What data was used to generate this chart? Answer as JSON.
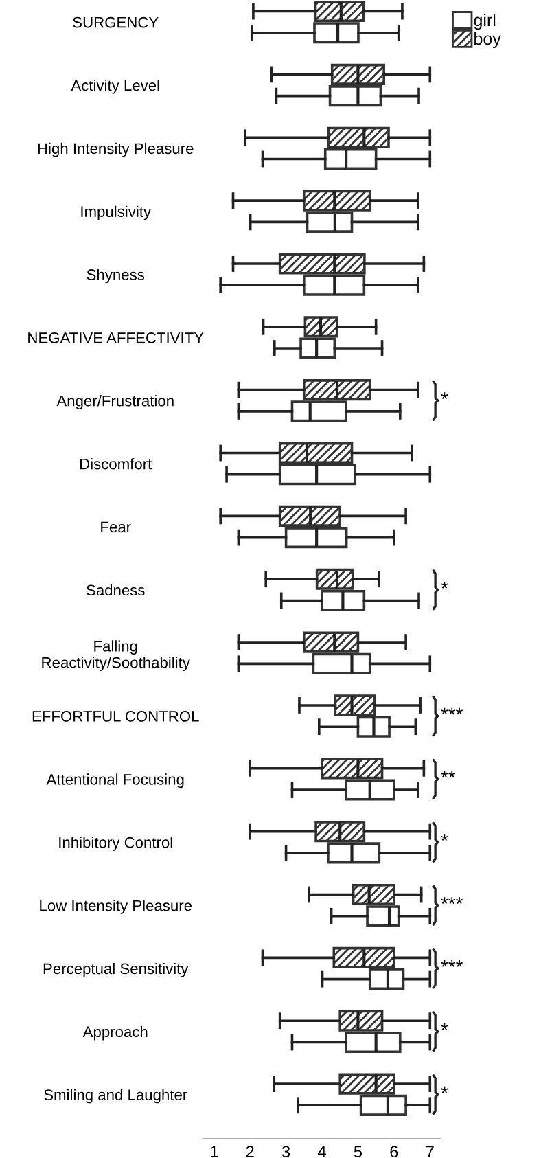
{
  "chart_data": {
    "type": "box",
    "orientation": "horizontal",
    "legend": "top right",
    "grid": false,
    "categories": [
      "SURGENCY",
      "Activity Level",
      "High Intensity Pleasure",
      "Impulsivity",
      "Shyness",
      "NEGATIVE AFFECTIVITY",
      "Anger/Frustration",
      "Discomfort",
      "Fear",
      "Sadness",
      "Falling\nReactivity/Soothability",
      "EFFORTFUL CONTROL",
      "Attentional Focusing",
      "Inhibitory Control",
      "Low Intensity Pleasure",
      "Perceptual Sensitivity",
      "Approach",
      "Smiling and Laughter"
    ],
    "xlim": [
      0.7,
      7.3
    ],
    "xticks": [
      1,
      2,
      3,
      4,
      5,
      6,
      7
    ],
    "series": [
      {
        "name": "boy",
        "color": "#333333",
        "boxes": [
          {
            "low": 2.09,
            "q1": 3.82,
            "median": 4.53,
            "q3": 5.15,
            "high": 6.23
          },
          {
            "low": 2.6,
            "q1": 4.28,
            "median": 5.0,
            "q3": 5.72,
            "high": 7.0
          },
          {
            "low": 1.86,
            "q1": 4.18,
            "median": 5.17,
            "q3": 5.85,
            "high": 7.0
          },
          {
            "low": 1.53,
            "q1": 3.5,
            "median": 4.35,
            "q3": 5.33,
            "high": 6.67
          },
          {
            "low": 1.53,
            "q1": 2.83,
            "median": 4.35,
            "q3": 5.18,
            "high": 6.83
          },
          {
            "low": 2.37,
            "q1": 3.53,
            "median": 3.96,
            "q3": 4.42,
            "high": 5.5
          },
          {
            "low": 1.68,
            "q1": 3.5,
            "median": 4.42,
            "q3": 5.33,
            "high": 6.67
          },
          {
            "low": 1.18,
            "q1": 2.83,
            "median": 3.58,
            "q3": 4.83,
            "high": 6.5
          },
          {
            "low": 1.18,
            "q1": 2.83,
            "median": 3.68,
            "q3": 4.5,
            "high": 6.33
          },
          {
            "low": 2.44,
            "q1": 3.86,
            "median": 4.42,
            "q3": 4.86,
            "high": 5.58
          },
          {
            "low": 1.68,
            "q1": 3.5,
            "median": 4.35,
            "q3": 5.0,
            "high": 6.33
          },
          {
            "low": 3.37,
            "q1": 4.37,
            "median": 4.83,
            "q3": 5.46,
            "high": 6.73
          },
          {
            "low": 2.0,
            "q1": 4.0,
            "median": 5.0,
            "q3": 5.67,
            "high": 6.83
          },
          {
            "low": 2.0,
            "q1": 3.83,
            "median": 4.5,
            "q3": 5.17,
            "high": 7.0
          },
          {
            "low": 3.64,
            "q1": 4.87,
            "median": 5.31,
            "q3": 6.0,
            "high": 6.76
          },
          {
            "low": 2.35,
            "q1": 4.33,
            "median": 5.17,
            "q3": 6.0,
            "high": 7.0
          },
          {
            "low": 2.83,
            "q1": 4.5,
            "median": 5.0,
            "q3": 5.67,
            "high": 7.0
          },
          {
            "low": 2.67,
            "q1": 4.5,
            "median": 5.5,
            "q3": 6.0,
            "high": 7.0
          }
        ]
      },
      {
        "name": "girl",
        "color": "#ffffff",
        "boxes": [
          {
            "low": 2.05,
            "q1": 3.79,
            "median": 4.44,
            "q3": 5.01,
            "high": 6.13
          },
          {
            "low": 2.73,
            "q1": 4.22,
            "median": 5.0,
            "q3": 5.63,
            "high": 6.69
          },
          {
            "low": 2.35,
            "q1": 4.09,
            "median": 4.67,
            "q3": 5.5,
            "high": 7.0
          },
          {
            "low": 2.01,
            "q1": 3.59,
            "median": 4.36,
            "q3": 4.83,
            "high": 6.67
          },
          {
            "low": 1.18,
            "q1": 3.5,
            "median": 4.35,
            "q3": 5.17,
            "high": 6.67
          },
          {
            "low": 2.68,
            "q1": 3.41,
            "median": 3.85,
            "q3": 4.35,
            "high": 5.67
          },
          {
            "low": 1.68,
            "q1": 3.17,
            "median": 3.67,
            "q3": 4.67,
            "high": 6.17
          },
          {
            "low": 1.35,
            "q1": 2.83,
            "median": 3.85,
            "q3": 4.92,
            "high": 7.0
          },
          {
            "low": 1.68,
            "q1": 3.0,
            "median": 3.85,
            "q3": 4.68,
            "high": 6.0
          },
          {
            "low": 2.87,
            "q1": 4.0,
            "median": 4.58,
            "q3": 5.17,
            "high": 6.69
          },
          {
            "low": 1.68,
            "q1": 3.76,
            "median": 4.83,
            "q3": 5.33,
            "high": 7.0
          },
          {
            "low": 3.92,
            "q1": 5.0,
            "median": 5.44,
            "q3": 5.87,
            "high": 6.6
          },
          {
            "low": 3.17,
            "q1": 4.67,
            "median": 5.33,
            "q3": 6.0,
            "high": 6.67
          },
          {
            "low": 3.0,
            "q1": 4.17,
            "median": 4.83,
            "q3": 5.59,
            "high": 7.0
          },
          {
            "low": 4.26,
            "q1": 5.26,
            "median": 5.87,
            "q3": 6.13,
            "high": 7.0
          },
          {
            "low": 4.01,
            "q1": 5.33,
            "median": 5.83,
            "q3": 6.26,
            "high": 7.0
          },
          {
            "low": 3.17,
            "q1": 4.67,
            "median": 5.5,
            "q3": 6.17,
            "high": 7.0
          },
          {
            "low": 3.33,
            "q1": 5.08,
            "median": 5.83,
            "q3": 6.33,
            "high": 7.0
          }
        ]
      }
    ],
    "annotations": [
      "*",
      "*",
      "***",
      "**",
      "*",
      "***",
      "***",
      "*",
      "*"
    ]
  }
}
